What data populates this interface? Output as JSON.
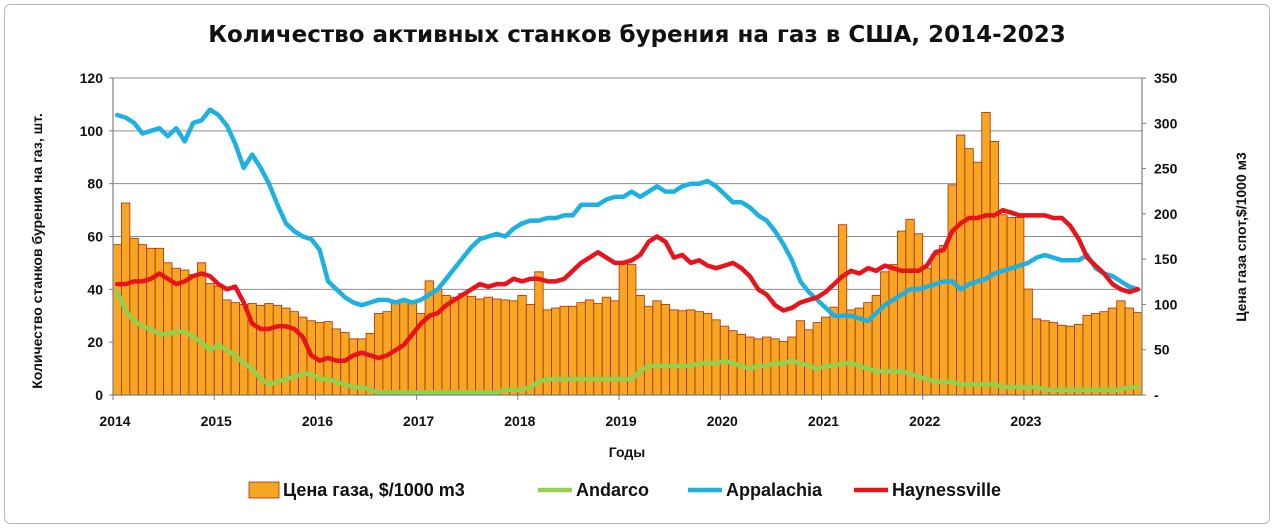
{
  "chart_data": {
    "type": "bar",
    "title": "Количество активных станков бурения на газ в США, 2014-2023",
    "xlabel": "Годы",
    "ylabel_left": "Количество станков бурения на газ, шт.",
    "ylabel_right": "Цена газа спот,$/1000 м3",
    "x_tick_labels": [
      "2014",
      "2015",
      "2016",
      "2017",
      "2018",
      "2019",
      "2020",
      "2021",
      "2022",
      "2023"
    ],
    "y_left_ticks": [
      "0",
      "20",
      "40",
      "60",
      "80",
      "100",
      "120"
    ],
    "y_right_ticks": [
      "-",
      "50",
      "100",
      "150",
      "200",
      "250",
      "300",
      "350"
    ],
    "ylim_left": [
      0,
      120
    ],
    "ylim_right": [
      0,
      350
    ],
    "grid": true,
    "legend_position": "bottom",
    "x_start": "2014-01",
    "x_end": "2023-12",
    "series": [
      {
        "name": "Цена газа, $/1000 m3",
        "kind": "bar",
        "axis": "right",
        "color": "#f5a623",
        "edge_color": "#b02a0a",
        "values": [
          166,
          212,
          173,
          166,
          162,
          162,
          146,
          140,
          138,
          133,
          146,
          123,
          120,
          105,
          102,
          100,
          101,
          99,
          101,
          99,
          96,
          92,
          86,
          82,
          80,
          81,
          73,
          69,
          62,
          62,
          68,
          90,
          92,
          104,
          105,
          104,
          90,
          126,
          117,
          110,
          108,
          112,
          109,
          106,
          108,
          106,
          105,
          104,
          110,
          100,
          136,
          94,
          96,
          98,
          98,
          102,
          105,
          101,
          108,
          104,
          145,
          144,
          110,
          98,
          104,
          100,
          94,
          93,
          94,
          92,
          90,
          83,
          76,
          71,
          67,
          64,
          62,
          64,
          62,
          59,
          64,
          82,
          72,
          80,
          86,
          97,
          188,
          94,
          96,
          102,
          110,
          136,
          144,
          181,
          194,
          178,
          140,
          155,
          165,
          232,
          287,
          272,
          257,
          312,
          280,
          199,
          196,
          196,
          117,
          84,
          82,
          80,
          77,
          76,
          78,
          88,
          90,
          92,
          96,
          104,
          96,
          91
        ]
      },
      {
        "name": "Andarco",
        "kind": "line",
        "axis": "left",
        "color": "#92d050",
        "values": [
          39,
          32,
          28,
          26,
          25,
          23,
          23,
          24,
          24,
          22,
          20,
          17,
          19,
          17,
          15,
          12,
          10,
          6,
          4,
          5,
          6,
          7,
          8,
          8,
          6,
          6,
          5,
          4,
          3,
          3,
          2,
          1,
          1,
          1,
          1,
          1,
          1,
          1,
          1,
          1,
          1,
          1,
          1,
          1,
          1,
          1,
          2,
          2,
          2,
          3,
          5,
          6,
          6,
          6,
          6,
          6,
          6,
          6,
          6,
          6,
          6,
          6,
          9,
          11,
          11,
          11,
          11,
          11,
          11,
          12,
          12,
          12,
          13,
          12,
          11,
          10,
          11,
          11,
          12,
          12,
          13,
          12,
          11,
          10,
          11,
          11,
          12,
          12,
          11,
          10,
          9,
          9,
          9,
          9,
          8,
          7,
          6,
          5,
          5,
          5,
          4,
          4,
          4,
          4,
          4,
          3,
          3,
          3,
          3,
          3,
          2,
          2,
          2,
          2,
          2,
          2,
          2,
          2,
          2,
          2,
          3,
          3
        ]
      },
      {
        "name": "Appalachia",
        "kind": "line",
        "axis": "left",
        "color": "#1fb0e2",
        "values": [
          106,
          105,
          103,
          99,
          100,
          101,
          98,
          101,
          96,
          103,
          104,
          108,
          106,
          102,
          95,
          86,
          91,
          86,
          80,
          72,
          65,
          62,
          60,
          59,
          55,
          43,
          40,
          37,
          35,
          34,
          35,
          36,
          36,
          35,
          36,
          35,
          36,
          38,
          40,
          44,
          48,
          52,
          56,
          59,
          60,
          61,
          60,
          63,
          65,
          66,
          66,
          67,
          67,
          68,
          68,
          72,
          72,
          72,
          74,
          75,
          75,
          77,
          75,
          77,
          79,
          77,
          77,
          79,
          80,
          80,
          81,
          79,
          76,
          73,
          73,
          71,
          68,
          66,
          62,
          57,
          51,
          43,
          39,
          36,
          33,
          30,
          30,
          30,
          29,
          28,
          31,
          34,
          36,
          38,
          40,
          40,
          41,
          42,
          43,
          43,
          40,
          42,
          43,
          44,
          46,
          47,
          48,
          49,
          50,
          52,
          53,
          52,
          51,
          51,
          51,
          53,
          48,
          46,
          45,
          43,
          41,
          40
        ]
      },
      {
        "name": "Haynessville",
        "kind": "line",
        "axis": "left",
        "color": "#e8141c",
        "values": [
          42,
          42,
          43,
          43,
          44,
          46,
          44,
          42,
          43,
          45,
          46,
          45,
          42,
          40,
          41,
          35,
          27,
          25,
          25,
          26,
          26,
          25,
          22,
          15,
          13,
          14,
          13,
          13,
          15,
          16,
          15,
          14,
          15,
          17,
          19,
          23,
          27,
          30,
          31,
          34,
          36,
          38,
          40,
          42,
          41,
          42,
          42,
          44,
          43,
          44,
          44,
          43,
          43,
          44,
          47,
          50,
          52,
          54,
          52,
          50,
          50,
          51,
          53,
          58,
          60,
          58,
          52,
          53,
          50,
          51,
          49,
          48,
          49,
          50,
          48,
          45,
          40,
          38,
          34,
          32,
          33,
          35,
          36,
          37,
          39,
          42,
          45,
          47,
          46,
          48,
          47,
          49,
          48,
          47,
          47,
          47,
          49,
          54,
          55,
          62,
          65,
          67,
          67,
          68,
          68,
          70,
          69,
          68,
          68,
          68,
          68,
          67,
          67,
          64,
          59,
          52,
          49,
          46,
          42,
          40,
          39,
          40
        ]
      }
    ]
  }
}
